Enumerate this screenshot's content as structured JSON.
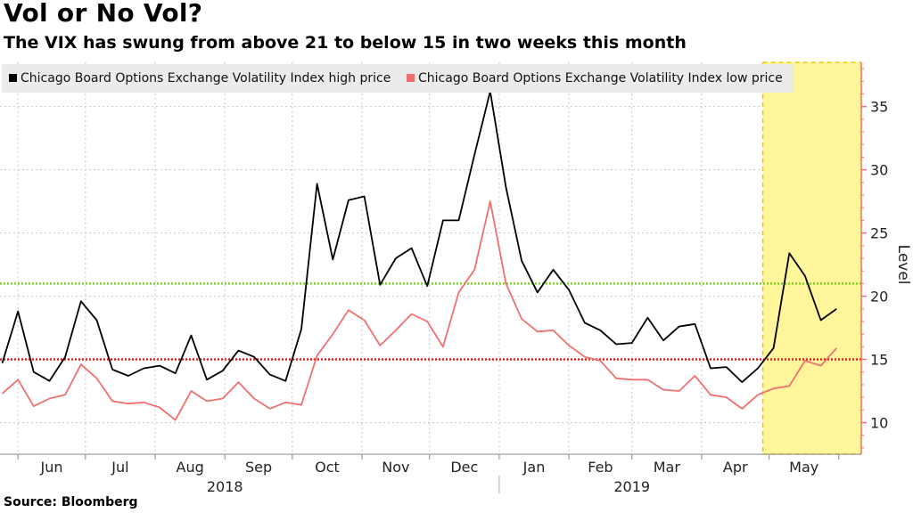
{
  "title": "Vol or No Vol?",
  "subtitle": "The VIX has swung from above 21 to below 15 in two weeks this month",
  "source": "Source: Bloomberg",
  "colors": {
    "high_line": "#000000",
    "low_line": "#f07070",
    "upper_ref": "#7ed321",
    "lower_ref": "#e02020",
    "highlight_fill": "#fff59a",
    "highlight_border": "#f5c400",
    "right_axis": "#f07070"
  },
  "chart_data": {
    "type": "line",
    "x_label": "",
    "y_label": "Level",
    "ylim": [
      7.5,
      38.5
    ],
    "y_ticks": [
      10,
      15,
      20,
      25,
      30,
      35
    ],
    "grid": true,
    "legend_position": "top-left",
    "x_months": [
      "Jun",
      "Jul",
      "Aug",
      "Sep",
      "Oct",
      "Nov",
      "Dec",
      "Jan",
      "Feb",
      "Mar",
      "Apr",
      "May"
    ],
    "x_years": [
      "2018",
      "2019"
    ],
    "reference_lines": [
      21,
      15
    ],
    "highlight_region": [
      "2019-05-03",
      "2019-05-31"
    ],
    "x": [
      "2018-05-25",
      "2018-06-01",
      "2018-06-08",
      "2018-06-15",
      "2018-06-22",
      "2018-06-29",
      "2018-07-06",
      "2018-07-13",
      "2018-07-20",
      "2018-07-27",
      "2018-08-03",
      "2018-08-10",
      "2018-08-17",
      "2018-08-24",
      "2018-08-31",
      "2018-09-07",
      "2018-09-14",
      "2018-09-21",
      "2018-09-28",
      "2018-10-05",
      "2018-10-12",
      "2018-10-19",
      "2018-10-26",
      "2018-11-02",
      "2018-11-09",
      "2018-11-16",
      "2018-11-23",
      "2018-11-30",
      "2018-12-07",
      "2018-12-14",
      "2018-12-21",
      "2018-12-28",
      "2019-01-04",
      "2019-01-11",
      "2019-01-18",
      "2019-01-25",
      "2019-02-01",
      "2019-02-08",
      "2019-02-15",
      "2019-02-22",
      "2019-03-01",
      "2019-03-08",
      "2019-03-15",
      "2019-03-22",
      "2019-03-29",
      "2019-04-05",
      "2019-04-12",
      "2019-04-19",
      "2019-04-26",
      "2019-05-03",
      "2019-05-10",
      "2019-05-17",
      "2019-05-24",
      "2019-05-31"
    ],
    "series": [
      {
        "name": "Chicago Board Options Exchange Volatility Index high price",
        "values": [
          14.7,
          18.8,
          14.0,
          13.3,
          15.2,
          19.6,
          18.1,
          14.2,
          13.7,
          14.3,
          14.5,
          13.9,
          16.9,
          13.4,
          14.1,
          15.7,
          15.2,
          13.8,
          13.3,
          17.4,
          28.9,
          22.9,
          27.6,
          27.9,
          20.9,
          23.0,
          23.8,
          20.8,
          26.0,
          26.0,
          31.2,
          36.2,
          28.6,
          22.8,
          20.3,
          22.1,
          20.5,
          17.9,
          17.3,
          16.2,
          16.3,
          18.3,
          16.5,
          17.6,
          17.8,
          14.3,
          14.4,
          13.2,
          14.3,
          15.9,
          23.4,
          21.6,
          18.1,
          19.0
        ]
      },
      {
        "name": "Chicago Board Options Exchange Volatility Index low price",
        "values": [
          12.3,
          13.4,
          11.3,
          11.9,
          12.2,
          14.6,
          13.5,
          11.7,
          11.5,
          11.6,
          11.2,
          10.2,
          12.5,
          11.7,
          11.9,
          13.2,
          11.9,
          11.1,
          11.6,
          11.4,
          15.3,
          17.0,
          18.9,
          18.1,
          16.1,
          17.3,
          18.6,
          18.0,
          16.0,
          20.3,
          22.1,
          27.5,
          21.0,
          18.2,
          17.2,
          17.3,
          16.1,
          15.2,
          14.9,
          13.5,
          13.4,
          13.4,
          12.6,
          12.5,
          13.7,
          12.2,
          12.0,
          11.1,
          12.2,
          12.7,
          12.9,
          14.9,
          14.5,
          15.9
        ]
      }
    ]
  }
}
